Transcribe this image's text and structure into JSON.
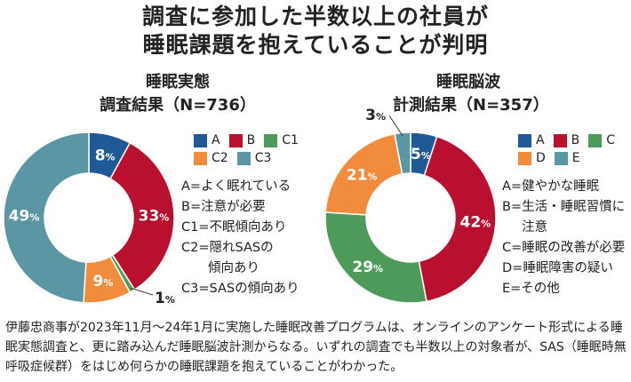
{
  "title": {
    "line1": "調査に参加した半数以上の社員が",
    "line2": "睡眠課題を抱えていることが判明"
  },
  "colors": {
    "A": "#1f5a96",
    "B": "#b8102e",
    "green": "#4e9a5a",
    "orange": "#f08c3c",
    "teal": "#5a96a3"
  },
  "chart_data": [
    {
      "type": "pie",
      "donut": true,
      "title_line1": "睡眠実態",
      "title_line2": "調査結果（N=736）",
      "categories": [
        "A",
        "B",
        "C1",
        "C2",
        "C3"
      ],
      "values": [
        8,
        33,
        1,
        9,
        49
      ],
      "unit": "%",
      "colors": [
        "#1f5a96",
        "#b8102e",
        "#4e9a5a",
        "#f08c3c",
        "#5a96a3"
      ],
      "definitions": [
        "A=よく眠れている",
        "B=注意が必要",
        "C1=不眠傾向あり",
        "C2=隠れSASの",
        "傾向あり",
        "C3=SASの傾向あり"
      ]
    },
    {
      "type": "pie",
      "donut": true,
      "title_line1": "睡眠脳波",
      "title_line2": "計測結果（N=357）",
      "categories": [
        "A",
        "B",
        "C",
        "D",
        "E"
      ],
      "values": [
        5,
        42,
        29,
        21,
        3
      ],
      "unit": "%",
      "colors": [
        "#1f5a96",
        "#b8102e",
        "#4e9a5a",
        "#f08c3c",
        "#5a96a3"
      ],
      "definitions": [
        "A=健やかな睡眠",
        "B=生活・睡眠習慣に",
        "注意",
        "C=睡眠の改善が必要",
        "D=睡眠障害の疑い",
        "E=その他"
      ]
    }
  ],
  "body": "伊藤忠商事が2023年11月～24年1月に実施した睡眠改善プログラムは、オンラインのアンケート形式による睡眠実態調査と、更に踏み込んだ睡眠脳波計測からなる。いずれの調査でも半数以上の対象者が、SAS（睡眠時無呼吸症候群）をはじめ何らかの睡眠課題を抱えていることがわかった。"
}
